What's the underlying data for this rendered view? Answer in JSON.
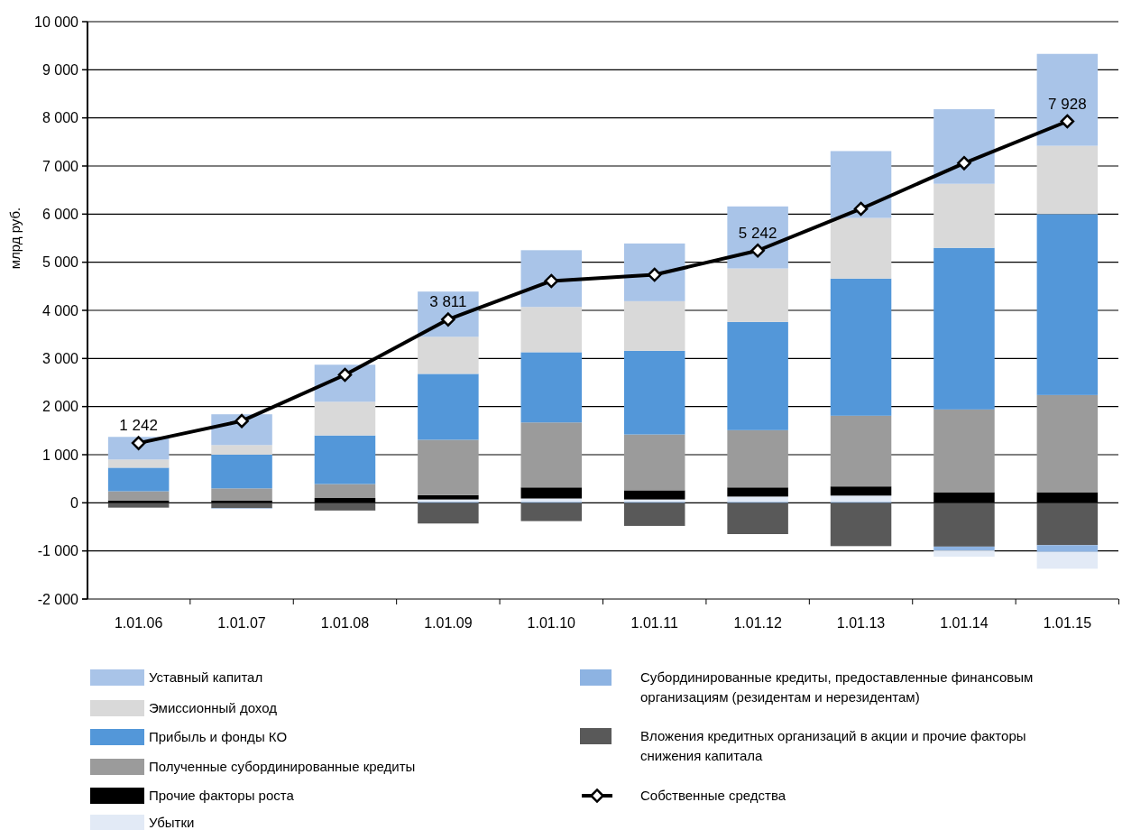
{
  "chart_data": {
    "type": "bar",
    "stacked": true,
    "ylabel": "млрд руб.",
    "categories": [
      "1.01.06",
      "1.01.07",
      "1.01.08",
      "1.01.09",
      "1.01.10",
      "1.01.11",
      "1.01.12",
      "1.01.13",
      "1.01.14",
      "1.01.15"
    ],
    "ylim": [
      -2000,
      10000
    ],
    "yticks": [
      {
        "value": -2000,
        "label": "-2 000"
      },
      {
        "value": -1000,
        "label": "-1 000"
      },
      0,
      {
        "value": 1000,
        "label": "1 000"
      },
      {
        "value": 2000,
        "label": "2 000"
      },
      {
        "value": 3000,
        "label": "3 000"
      },
      {
        "value": 4000,
        "label": "4 000"
      },
      {
        "value": 5000,
        "label": "5 000"
      },
      {
        "value": 6000,
        "label": "6 000"
      },
      {
        "value": 7000,
        "label": "7 000"
      },
      {
        "value": 8000,
        "label": "8 000"
      },
      {
        "value": 9000,
        "label": "9 000"
      },
      {
        "value": 10000,
        "label": "10 000"
      }
    ],
    "grid": "y",
    "legend": "bottom",
    "series": [
      {
        "name": "Вложения кредитных организаций в акции и прочие факторы снижения капитала",
        "color": "#595959",
        "values": [
          -100,
          -110,
          -160,
          -430,
          -380,
          -480,
          -650,
          -900,
          -910,
          -880
        ]
      },
      {
        "name": "Субординированные кредиты, предоставленные финансовым организациям (резидентам и нерезидентам)",
        "color": "#8db3e2",
        "values": [
          null,
          -10,
          null,
          20,
          20,
          20,
          20,
          20,
          -80,
          -140
        ]
      },
      {
        "name": "Убытки",
        "color": "#e2eaf6",
        "values": [
          0,
          0,
          0,
          50,
          70,
          50,
          110,
          130,
          -130,
          -350
        ]
      },
      {
        "name": "Прочие факторы роста",
        "color": "#000000",
        "values": [
          50,
          50,
          100,
          90,
          230,
          190,
          190,
          190,
          220,
          220
        ]
      },
      {
        "name": "Полученные субординированные кредиты",
        "color": "#9b9b9b",
        "values": [
          190,
          250,
          290,
          1150,
          1350,
          1160,
          1190,
          1470,
          1720,
          2020
        ]
      },
      {
        "name": "Прибыль и фонды КО",
        "color": "#5397d9",
        "values": [
          490,
          700,
          1010,
          1370,
          1460,
          1740,
          2250,
          2850,
          3360,
          3760
        ]
      },
      {
        "name": "Эмиссионный доход",
        "color": "#d9d9d9",
        "values": [
          170,
          200,
          700,
          770,
          940,
          1030,
          1110,
          1260,
          1330,
          1420
        ]
      },
      {
        "name": "Уставный капитал",
        "color": "#a9c4e8",
        "values": [
          470,
          640,
          770,
          940,
          1180,
          1200,
          1290,
          1390,
          1550,
          1910
        ]
      },
      {
        "name": "Собственные средства",
        "type": "line",
        "color": "#000000",
        "marker": "diamond",
        "values": [
          1242,
          1700,
          2660,
          3811,
          4610,
          4740,
          5242,
          6110,
          7060,
          7928
        ],
        "value_labels": [
          "1 242",
          null,
          null,
          "3 811",
          null,
          null,
          "5 242",
          null,
          null,
          "7 928"
        ]
      }
    ]
  }
}
